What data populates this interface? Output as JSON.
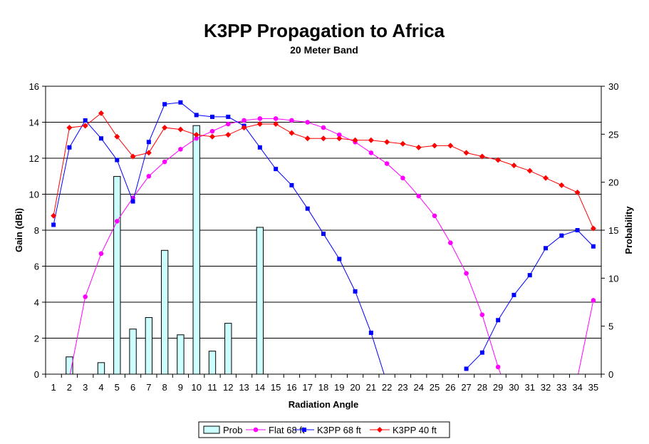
{
  "chart_data": {
    "type": "bar+line",
    "title": "K3PP Propagation to Africa",
    "subtitle": "20 Meter Band",
    "xlabel": "Radiation Angle",
    "ylabel": "Gain (dBi)",
    "y2label": "Probability",
    "categories": [
      "1",
      "2",
      "3",
      "4",
      "5",
      "6",
      "7",
      "8",
      "9",
      "10",
      "11",
      "12",
      "13",
      "14",
      "15",
      "16",
      "17",
      "18",
      "19",
      "20",
      "21",
      "22",
      "23",
      "24",
      "25",
      "26",
      "27",
      "28",
      "29",
      "30",
      "31",
      "32",
      "33",
      "34",
      "35"
    ],
    "ylim": [
      0,
      16
    ],
    "y2lim": [
      0,
      30
    ],
    "yticks": [
      0,
      2,
      4,
      6,
      8,
      10,
      12,
      14,
      16
    ],
    "y2ticks": [
      0,
      5,
      10,
      15,
      20,
      25,
      30
    ],
    "grid": true,
    "legend_position": "bottom",
    "bar_series": {
      "name": "Prob",
      "axis": "right",
      "color": "#ccffff",
      "values": [
        0,
        1.8,
        0,
        1.2,
        20.6,
        4.7,
        5.9,
        12.9,
        4.1,
        25.9,
        2.4,
        5.3,
        0,
        15.3,
        0,
        0,
        0,
        0,
        0,
        0,
        0,
        0,
        0,
        0,
        0,
        0,
        0,
        0,
        0,
        0,
        0,
        0,
        0,
        0,
        0
      ]
    },
    "series": [
      {
        "name": "Flat 68 ft",
        "color": "#ff00ff",
        "marker": "circle",
        "values": [
          null,
          -0.2,
          4.3,
          6.7,
          8.5,
          9.8,
          11.0,
          11.8,
          12.5,
          13.1,
          13.5,
          13.9,
          14.1,
          14.2,
          14.2,
          14.1,
          14.0,
          13.7,
          13.3,
          12.9,
          12.3,
          11.7,
          10.9,
          9.9,
          8.8,
          7.3,
          5.6,
          3.3,
          0.4,
          -2.0,
          null,
          null,
          null,
          -0.2,
          4.1
        ]
      },
      {
        "name": "K3PP 68 ft",
        "color": "#0000ff",
        "marker": "square",
        "values": [
          8.3,
          12.6,
          14.1,
          13.1,
          11.9,
          9.6,
          12.9,
          15.0,
          15.1,
          14.4,
          14.3,
          14.3,
          13.8,
          12.6,
          11.4,
          10.5,
          9.2,
          7.8,
          6.4,
          4.6,
          2.3,
          -0.5,
          null,
          null,
          null,
          null,
          0.3,
          1.2,
          3.0,
          4.4,
          5.5,
          7.0,
          7.7,
          8.0,
          7.1
        ]
      },
      {
        "name": "K3PP 40 ft",
        "color": "#ff0000",
        "marker": "diamond",
        "values": [
          8.8,
          13.7,
          13.8,
          14.5,
          13.2,
          12.1,
          12.3,
          13.7,
          13.6,
          13.3,
          13.2,
          13.3,
          13.7,
          13.9,
          13.9,
          13.4,
          13.1,
          13.1,
          13.1,
          13.0,
          13.0,
          12.9,
          12.8,
          12.6,
          12.7,
          12.7,
          12.3,
          12.1,
          11.9,
          11.6,
          11.3,
          10.9,
          10.5,
          10.1,
          8.1
        ]
      }
    ]
  }
}
